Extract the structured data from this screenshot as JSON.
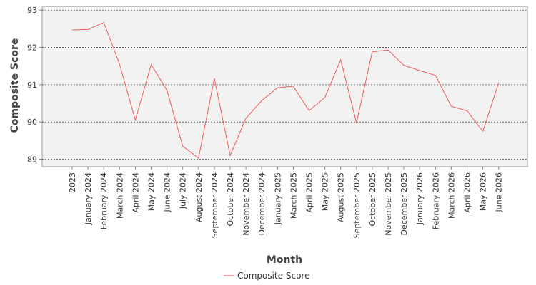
{
  "chart_data": {
    "type": "line",
    "xlabel": "Month",
    "ylabel": "Composite Score",
    "ylim": [
      88.8,
      93.1
    ],
    "yticks": [
      89,
      90,
      91,
      92,
      93
    ],
    "grid": true,
    "legend_position": "bottom-center",
    "categories": [
      "2023",
      "January 2024",
      "February 2024",
      "March 2024",
      "April 2024",
      "May 2024",
      "June 2024",
      "July 2024",
      "August 2024",
      "September 2024",
      "October 2024",
      "November 2024",
      "December 2024",
      "January 2025",
      "March 2025",
      "April 2025",
      "May 2025",
      "August 2025",
      "September 2025",
      "October 2025",
      "November 2025",
      "December 2025",
      "January 2026",
      "February 2026",
      "March 2026",
      "April 2026",
      "May 2026",
      "June 2026"
    ],
    "series": [
      {
        "name": "Composite Score",
        "color": "#f05a5a",
        "values": [
          92.47,
          92.48,
          92.67,
          91.55,
          90.05,
          91.54,
          90.85,
          89.35,
          89.03,
          91.17,
          89.1,
          90.1,
          90.57,
          90.92,
          90.96,
          90.3,
          90.66,
          91.67,
          89.98,
          91.88,
          91.93,
          91.52,
          91.38,
          91.25,
          90.42,
          90.3,
          89.75,
          91.05
        ]
      }
    ]
  }
}
